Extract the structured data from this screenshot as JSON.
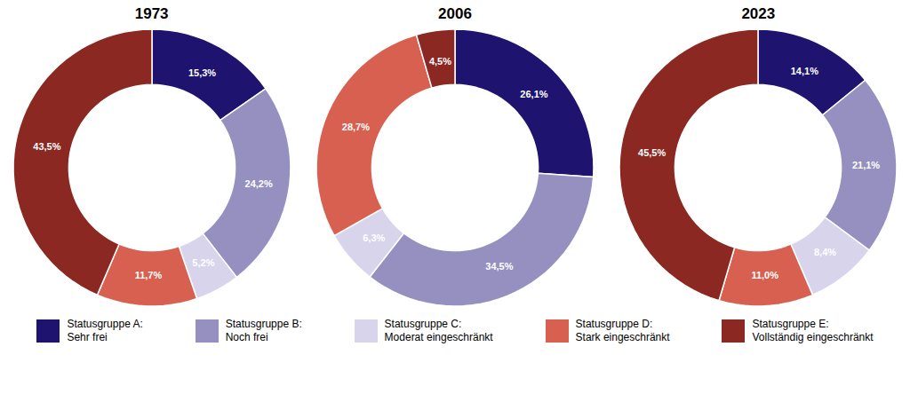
{
  "chart_data": [
    {
      "type": "pie",
      "title": "1973",
      "categories": [
        "Statusgruppe A:\nSehr frei",
        "Statusgruppe B:\nNoch frei",
        "Statusgruppe C:\nModerat eingeschränkt",
        "Statusgruppe D:\nStark eingeschränkt",
        "Statusgruppe E:\nVollständig eingeschränkt"
      ],
      "values": [
        15.3,
        24.2,
        5.2,
        11.7,
        43.5
      ],
      "value_labels": [
        "15,3%",
        "24,2%",
        "5,2%",
        "11,7%",
        "43,5%"
      ],
      "colors": [
        "#1e1470",
        "#9590c0",
        "#d8d4ec",
        "#d86050",
        "#8c2822"
      ],
      "data_labels": true,
      "legend": "bottom"
    },
    {
      "type": "pie",
      "title": "2006",
      "categories": [
        "Statusgruppe A:\nSehr frei",
        "Statusgruppe B:\nNoch frei",
        "Statusgruppe C:\nModerat eingeschränkt",
        "Statusgruppe D:\nStark eingeschränkt",
        "Statusgruppe E:\nVollständig eingeschränkt"
      ],
      "values": [
        26.1,
        34.5,
        6.3,
        28.7,
        4.5
      ],
      "value_labels": [
        "26,1%",
        "34,5%",
        "6,3%",
        "28,7%",
        "4,5%"
      ],
      "colors": [
        "#1e1470",
        "#9590c0",
        "#d8d4ec",
        "#d86050",
        "#8c2822"
      ],
      "data_labels": true,
      "legend": "bottom"
    },
    {
      "type": "pie",
      "title": "2023",
      "categories": [
        "Statusgruppe A:\nSehr frei",
        "Statusgruppe B:\nNoch frei",
        "Statusgruppe C:\nModerat eingeschränkt",
        "Statusgruppe D:\nStark eingeschränkt",
        "Statusgruppe E:\nVollständig eingeschränkt"
      ],
      "values": [
        14.1,
        21.1,
        8.4,
        11.0,
        45.5
      ],
      "value_labels": [
        "14,1%",
        "21,1%",
        "8,4%",
        "11,0%",
        "45,5%"
      ],
      "colors": [
        "#1e1470",
        "#9590c0",
        "#d8d4ec",
        "#d86050",
        "#8c2822"
      ],
      "data_labels": true,
      "legend": "bottom"
    }
  ]
}
